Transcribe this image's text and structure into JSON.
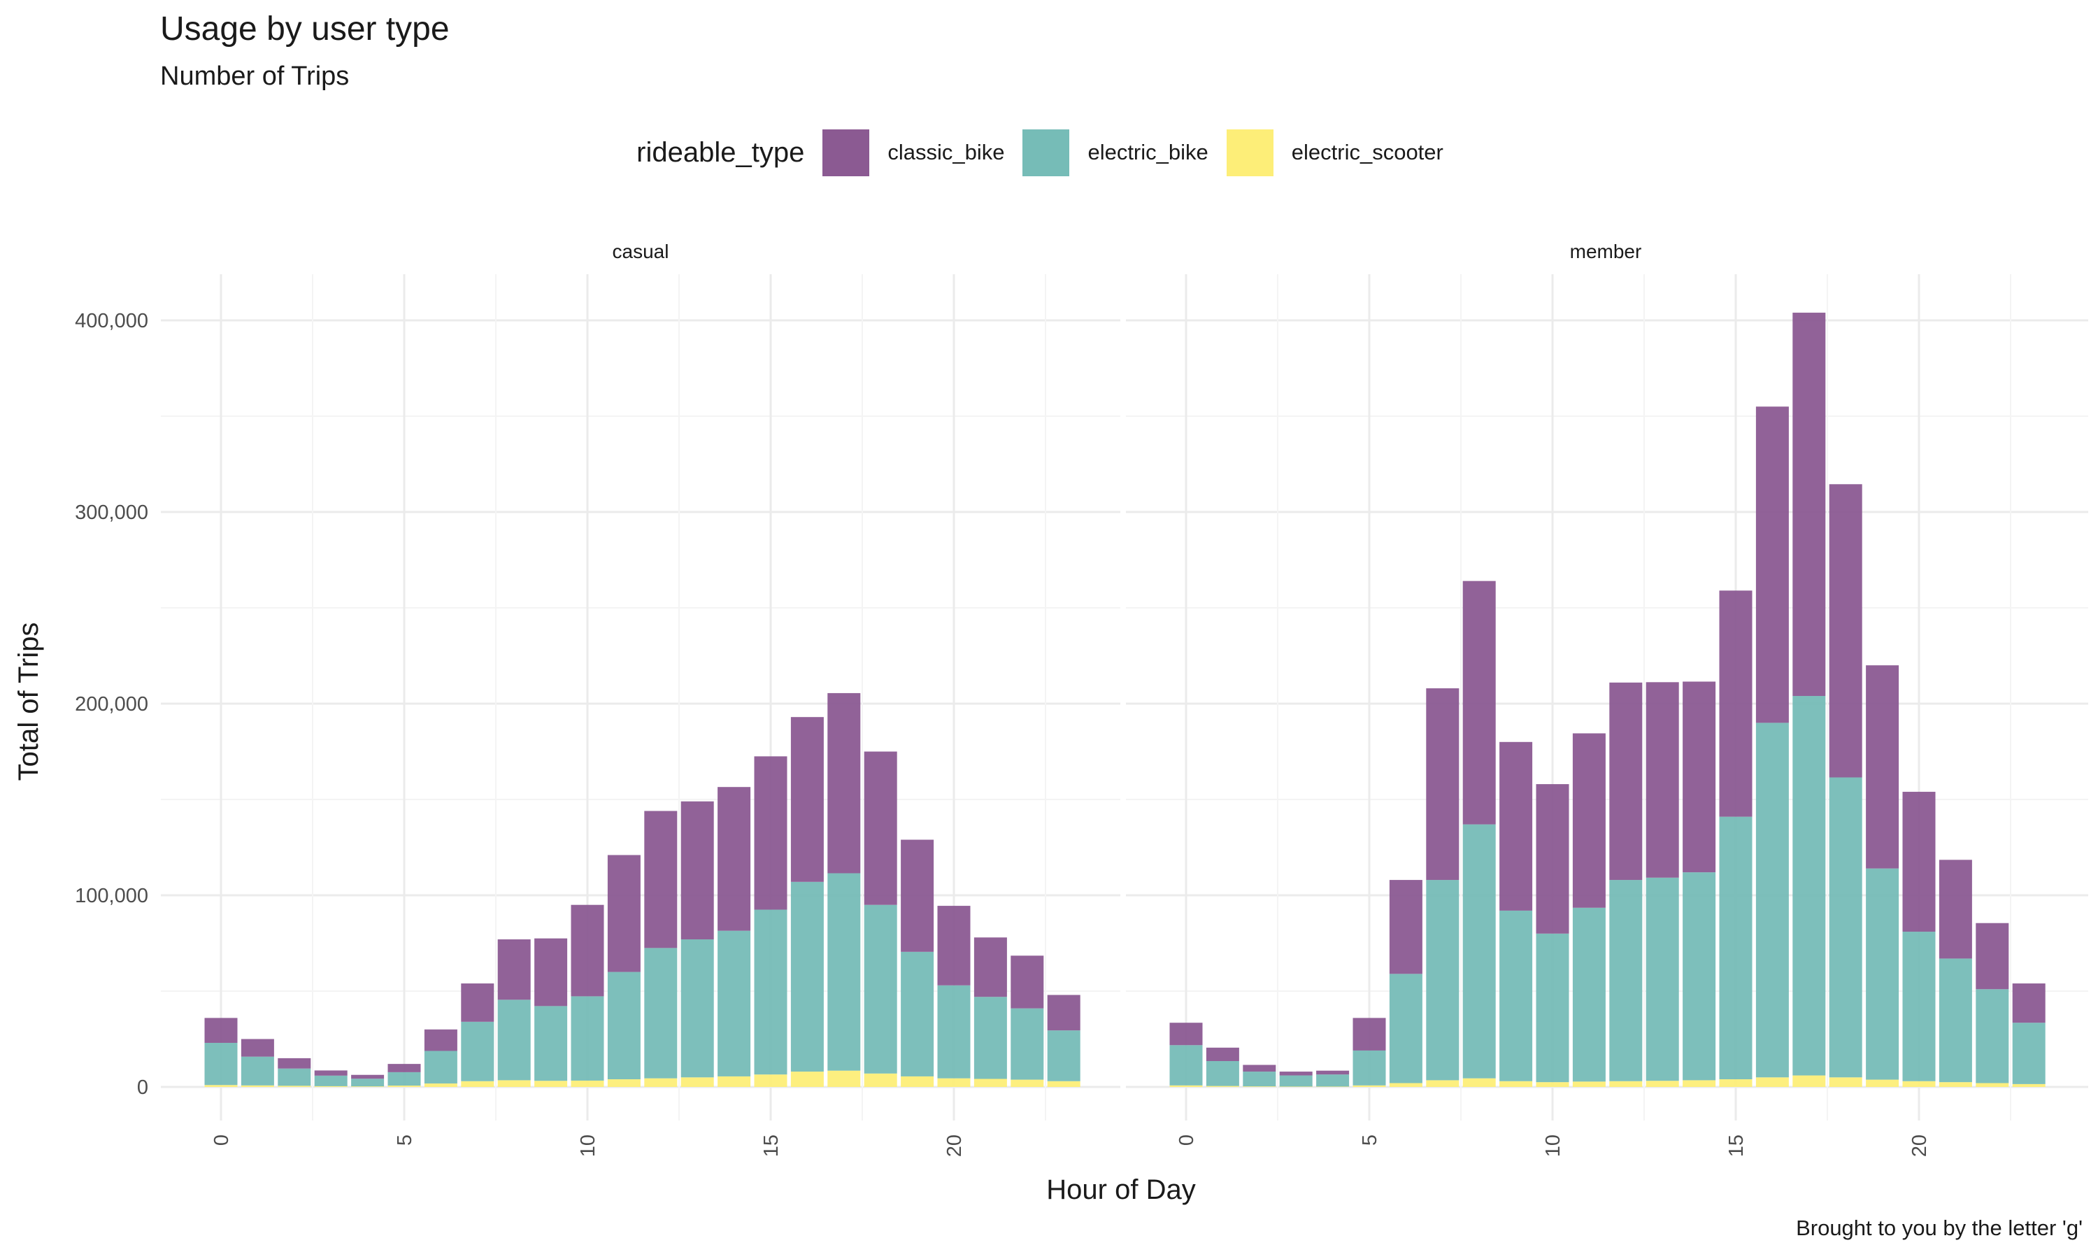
{
  "title": "Usage by user type",
  "subtitle": "Number of Trips",
  "caption": "Brought to you by the letter 'g'",
  "legend": {
    "title": "rideable_type",
    "items": [
      {
        "label": "classic_bike",
        "color": "#8B5A92"
      },
      {
        "label": "electric_bike",
        "color": "#76BCB7"
      },
      {
        "label": "electric_scooter",
        "color": "#FDEE78"
      }
    ]
  },
  "chart_data": {
    "type": "bar",
    "stacked": true,
    "xlabel": "Hour of Day",
    "ylabel": "Total of Trips",
    "ylim": [
      0,
      430000
    ],
    "y_ticks": [
      0,
      100000,
      200000,
      300000,
      400000
    ],
    "y_tick_labels": [
      "0",
      "100,000",
      "200,000",
      "300,000",
      "400,000"
    ],
    "x_ticks": [
      0,
      5,
      10,
      15,
      20
    ],
    "x_tick_labels": [
      "0",
      "5",
      "10",
      "15",
      "20"
    ],
    "hours": [
      0,
      1,
      2,
      3,
      4,
      5,
      6,
      7,
      8,
      9,
      10,
      11,
      12,
      13,
      14,
      15,
      16,
      17,
      18,
      19,
      20,
      21,
      22,
      23
    ],
    "facets": [
      {
        "name": "casual",
        "series": [
          {
            "name": "electric_scooter",
            "values": [
              1000,
              800,
              600,
              400,
              300,
              700,
              1800,
              3000,
              3500,
              3200,
              3300,
              4000,
              4500,
              5000,
              5500,
              6500,
              8000,
              8500,
              7000,
              5500,
              4500,
              4200,
              3800,
              3000
            ]
          },
          {
            "name": "electric_bike",
            "values": [
              22000,
              15000,
              9000,
              5500,
              4000,
              7000,
              17000,
              31000,
              42000,
              39000,
              44000,
              56000,
              68000,
              72000,
              76000,
              86000,
              99000,
              103000,
              88000,
              65000,
              48500,
              42800,
              37200,
              26500
            ]
          },
          {
            "name": "classic_bike",
            "values": [
              13000,
              9200,
              5400,
              2700,
              2000,
              4300,
              11200,
              20000,
              31500,
              35300,
              47700,
              61000,
              71500,
              72000,
              75000,
              80000,
              86000,
              94000,
              80000,
              58500,
              41500,
              31000,
              27500,
              18500
            ]
          }
        ]
      },
      {
        "name": "member",
        "series": [
          {
            "name": "electric_scooter",
            "values": [
              800,
              500,
              300,
              200,
              200,
              800,
              2000,
              3500,
              4500,
              3000,
              2500,
              2800,
              3000,
              3200,
              3500,
              4000,
              5000,
              6000,
              5000,
              3800,
              3000,
              2500,
              2000,
              1500
            ]
          },
          {
            "name": "electric_bike",
            "values": [
              21000,
              13000,
              7700,
              5800,
              6300,
              18200,
              57000,
              104500,
              132500,
              89000,
              77500,
              90700,
              105000,
              106000,
              108500,
              137000,
              185000,
              198000,
              156500,
              110200,
              78000,
              64500,
              49000,
              32000
            ]
          },
          {
            "name": "classic_bike",
            "values": [
              11700,
              7000,
              3500,
              2000,
              2000,
              17000,
              49000,
              100000,
              127000,
              88000,
              78000,
              91000,
              103000,
              102000,
              99500,
              118000,
              165000,
              200000,
              153000,
              106000,
              73000,
              51500,
              34500,
              20500
            ]
          }
        ]
      }
    ]
  }
}
